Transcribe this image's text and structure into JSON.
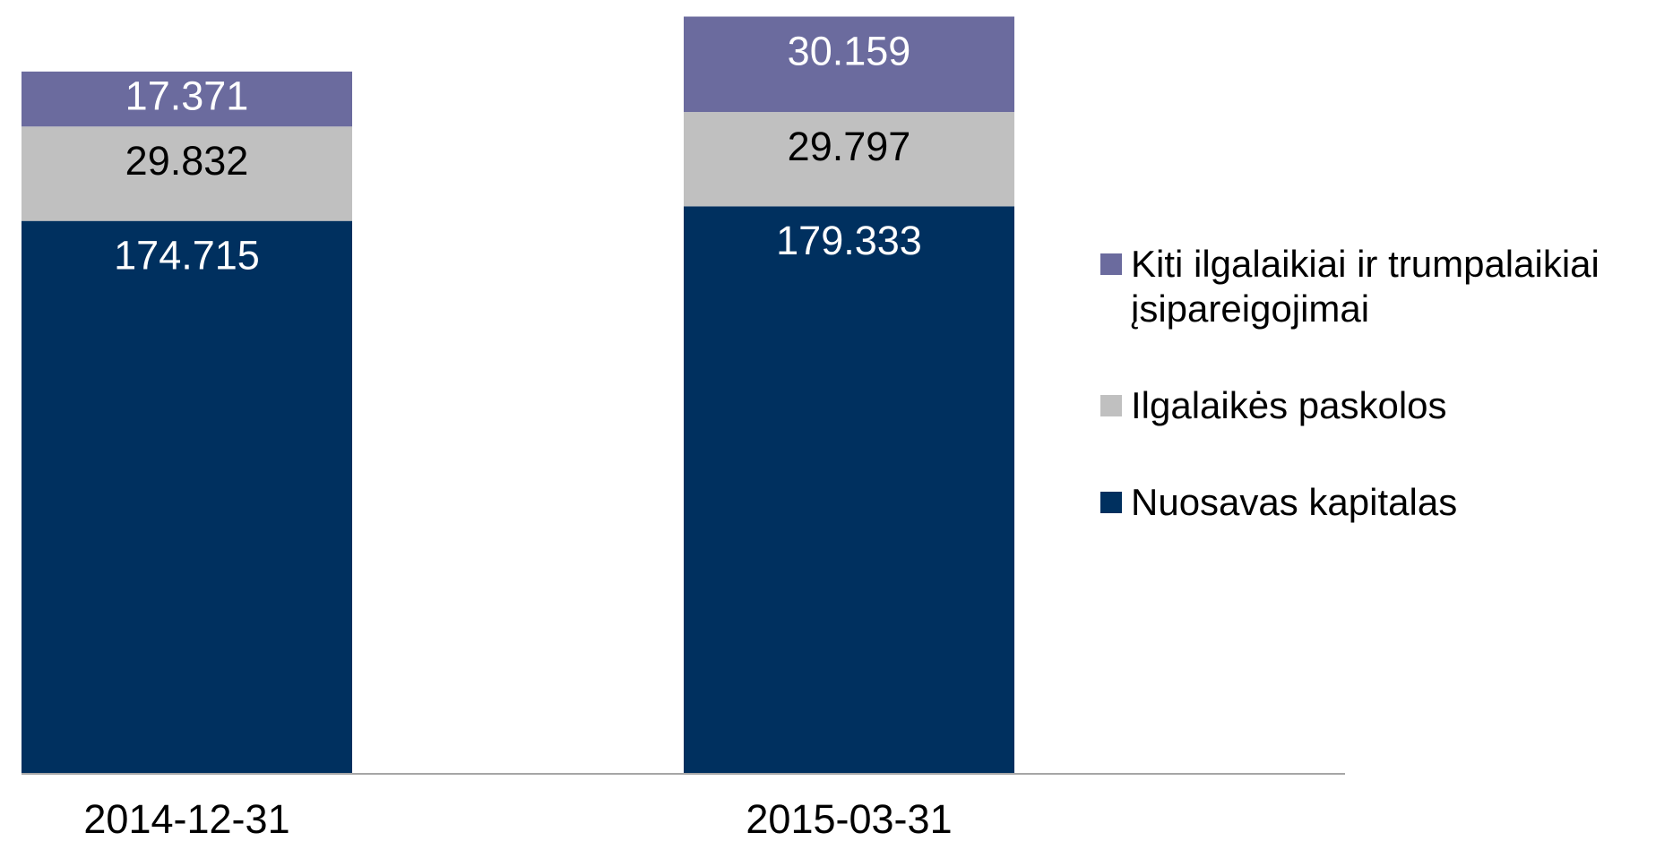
{
  "chart_data": {
    "type": "stacked_bar",
    "categories": [
      "2014-12-31",
      "2015-03-31"
    ],
    "series": [
      {
        "name": "Nuosavas kapitalas",
        "color": "#00305f",
        "values": [
          174.715,
          179.333
        ]
      },
      {
        "name": "Ilgalaikės paskolos",
        "color": "#c0c0c0",
        "values": [
          29.832,
          29.797
        ]
      },
      {
        "name": "Kiti ilgalaikiai ir trumpalaikiai įsipareigojimai",
        "color": "#6b6b9e",
        "values": [
          17.371,
          30.159
        ]
      }
    ],
    "ylim": [
      0,
      240
    ]
  }
}
